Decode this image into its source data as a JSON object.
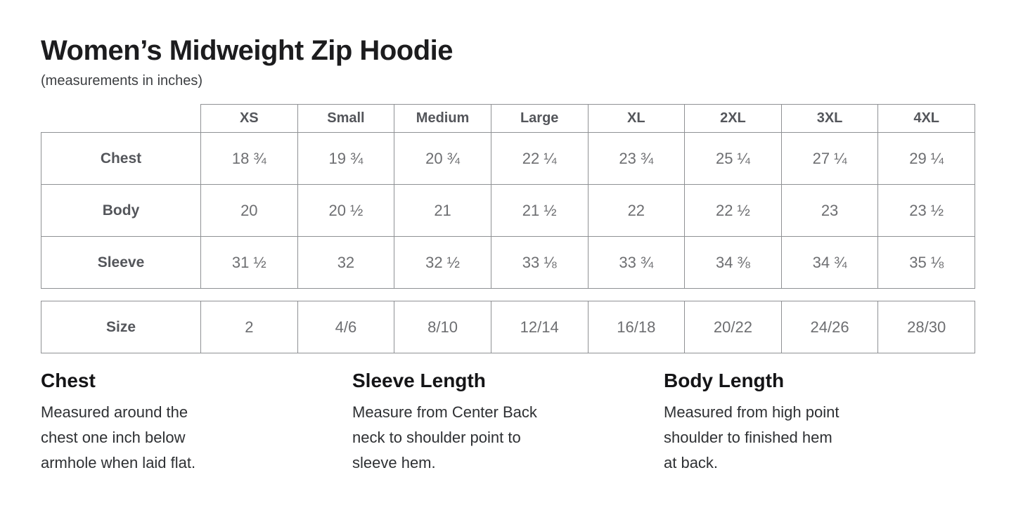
{
  "page": {
    "title": "Women’s Midweight Zip Hoodie",
    "subtitle": "(measurements in inches)"
  },
  "size_chart": {
    "columns": [
      "XS",
      "Small",
      "Medium",
      "Large",
      "XL",
      "2XL",
      "3XL",
      "4XL"
    ],
    "rows": [
      {
        "label": "Chest",
        "values": [
          "18 ¾",
          "19 ¾",
          "20 ¾",
          "22 ¼",
          "23 ¾",
          "25 ¼",
          "27 ¼",
          "29 ¼"
        ]
      },
      {
        "label": "Body",
        "values": [
          "20",
          "20 ½",
          "21",
          "21 ½",
          "22",
          "22 ½",
          "23",
          "23 ½"
        ]
      },
      {
        "label": "Sleeve",
        "values": [
          "31 ½",
          "32",
          "32 ½",
          "33 ⅛",
          "33 ¾",
          "34 ⅜",
          "34 ¾",
          "35 ⅛"
        ]
      }
    ],
    "size_row": {
      "label": "Size",
      "values": [
        "2",
        "4/6",
        "8/10",
        "12/14",
        "16/18",
        "20/22",
        "24/26",
        "28/30"
      ]
    }
  },
  "definitions": [
    {
      "heading": "Chest",
      "text": "Measured around the\nchest one inch below\narmhole when laid flat."
    },
    {
      "heading": "Sleeve Length",
      "text": "Measure from Center Back\nneck to shoulder point to\nsleeve hem."
    },
    {
      "heading": "Body Length",
      "text": "Measured from high point\nshoulder to finished hem\nat back."
    }
  ],
  "colors": {
    "border": "#8f9194",
    "header_text": "#54565b",
    "value_text": "#6d6e71",
    "title_text": "#1c1c1e",
    "subtitle_text": "#3d3f42",
    "def_heading_text": "#141416",
    "def_body_text": "#2e3033"
  }
}
